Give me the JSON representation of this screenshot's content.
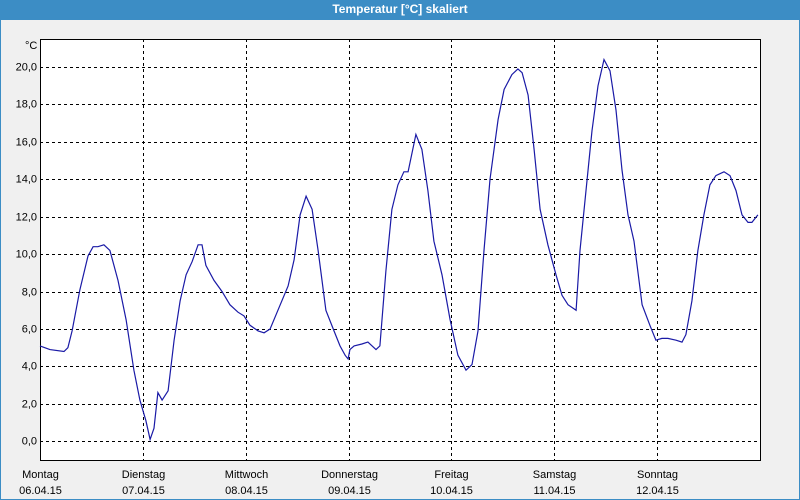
{
  "chart_data": {
    "type": "line",
    "title": "Temperatur [°C] skaliert",
    "y_unit": "°C",
    "xlim": [
      0,
      168
    ],
    "xticks": [
      {
        "value": 0,
        "label": "Montag",
        "date": "06.04.15"
      },
      {
        "value": 24,
        "label": "Dienstag",
        "date": "07.04.15"
      },
      {
        "value": 48,
        "label": "Mittwoch",
        "date": "08.04.15"
      },
      {
        "value": 72,
        "label": "Donnerstag",
        "date": "09.04.15"
      },
      {
        "value": 96,
        "label": "Freitag",
        "date": "10.04.15"
      },
      {
        "value": 120,
        "label": "Samstag",
        "date": "11.04.15"
      },
      {
        "value": 144,
        "label": "Sonntag",
        "date": "12.04.15"
      }
    ],
    "ylim": [
      -1,
      21.5
    ],
    "yticks": [
      {
        "value": 0,
        "label": "0,0"
      },
      {
        "value": 2,
        "label": "2,0"
      },
      {
        "value": 4,
        "label": "4,0"
      },
      {
        "value": 6,
        "label": "6,0"
      },
      {
        "value": 8,
        "label": "8,0"
      },
      {
        "value": 10,
        "label": "10,0"
      },
      {
        "value": 12,
        "label": "12,0"
      },
      {
        "value": 14,
        "label": "14,0"
      },
      {
        "value": 16,
        "label": "16,0"
      },
      {
        "value": 18,
        "label": "18,0"
      },
      {
        "value": 20,
        "label": "20,0"
      }
    ],
    "grid": true,
    "series": [
      {
        "color": "#1a1aa6",
        "x": [
          0,
          2.3,
          5.6,
          6.5,
          7.5,
          9.3,
          11.2,
          12.4,
          13.5,
          14.9,
          16.3,
          18.2,
          20.1,
          21.9,
          23.3,
          24.7,
          25.7,
          26.6,
          27.5,
          28.5,
          29.9,
          31.3,
          32.7,
          34.1,
          35.5,
          36.9,
          37.8,
          38.7,
          40.6,
          42.5,
          44.3,
          46.2,
          47.6,
          49,
          50.9,
          52.3,
          53.7,
          55.5,
          57.9,
          59.3,
          60.7,
          62.1,
          63.5,
          64.9,
          66.7,
          68.6,
          70,
          71.2,
          71.9,
          72.3,
          73.3,
          75.1,
          76.5,
          78.4,
          79.3,
          80.7,
          82.1,
          83.5,
          84.9,
          85.9,
          87.7,
          89.1,
          90.5,
          91.9,
          93.8,
          95.7,
          97.5,
          99.4,
          100.8,
          102.2,
          103.6,
          105,
          106.9,
          108.3,
          110.1,
          111.5,
          112.5,
          113.9,
          115.3,
          116.7,
          118.5,
          120.4,
          121.8,
          123.2,
          125.1,
          126,
          127.4,
          128.8,
          130.2,
          131.6,
          133,
          134.4,
          135.8,
          137.2,
          138.6,
          140.5,
          142.3,
          143.7,
          145.1,
          146.5,
          148.4,
          149.8,
          150.7,
          152.1,
          153.5,
          154.9,
          156.3,
          157.7,
          159.6,
          161,
          162.4,
          163.8,
          165.2,
          166.1,
          167.5
        ],
        "values": [
          5.1,
          4.9,
          4.8,
          5.0,
          5.9,
          8.1,
          9.9,
          10.4,
          10.4,
          10.5,
          10.2,
          8.6,
          6.5,
          3.8,
          2.2,
          1.1,
          0.1,
          0.7,
          2.6,
          2.2,
          2.7,
          5.4,
          7.5,
          8.9,
          9.6,
          10.5,
          10.5,
          9.4,
          8.6,
          8.0,
          7.3,
          6.9,
          6.7,
          6.2,
          5.9,
          5.8,
          6.0,
          7.0,
          8.3,
          9.7,
          12.1,
          13.1,
          12.4,
          10.2,
          7.0,
          5.9,
          5.1,
          4.6,
          4.4,
          4.9,
          5.1,
          5.2,
          5.3,
          4.9,
          5.1,
          9.1,
          12.4,
          13.7,
          14.4,
          14.4,
          16.4,
          15.6,
          13.4,
          10.7,
          8.9,
          6.5,
          4.6,
          3.8,
          4.1,
          5.9,
          10.2,
          14.0,
          17.2,
          18.8,
          19.6,
          19.9,
          19.7,
          18.5,
          15.6,
          12.4,
          10.5,
          8.9,
          7.8,
          7.3,
          7.0,
          10.2,
          13.4,
          16.6,
          19.0,
          20.4,
          19.8,
          17.7,
          14.5,
          12.1,
          10.7,
          7.3,
          6.2,
          5.4,
          5.5,
          5.5,
          5.4,
          5.3,
          5.7,
          7.5,
          10.2,
          12.1,
          13.7,
          14.2,
          14.4,
          14.2,
          13.4,
          12.1,
          11.7,
          11.7,
          12.1
        ]
      }
    ]
  }
}
